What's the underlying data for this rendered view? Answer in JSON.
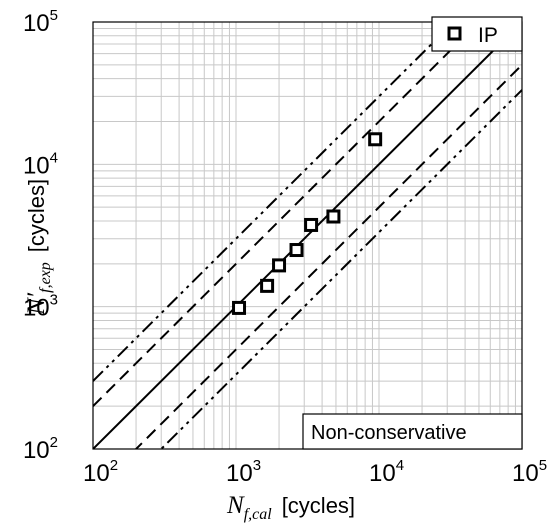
{
  "chart_data": {
    "type": "scatter",
    "xscale": "log",
    "yscale": "log",
    "xlim": [
      100,
      100000
    ],
    "ylim": [
      100,
      100000
    ],
    "grid": true,
    "xlabel": {
      "symbol": "N",
      "subscript": "f,cal",
      "unit": "[cycles]"
    },
    "ylabel": {
      "symbol": "N′",
      "subscript": "f,exp",
      "unit": "[cycles]"
    },
    "x_ticks": [
      {
        "value": 100,
        "base": "10",
        "exp": "2"
      },
      {
        "value": 1000,
        "base": "10",
        "exp": "3"
      },
      {
        "value": 10000,
        "base": "10",
        "exp": "4"
      },
      {
        "value": 100000,
        "base": "10",
        "exp": "5"
      }
    ],
    "y_ticks": [
      {
        "value": 100,
        "base": "10",
        "exp": "2"
      },
      {
        "value": 1000,
        "base": "10",
        "exp": "3"
      },
      {
        "value": 10000,
        "base": "10",
        "exp": "4"
      },
      {
        "value": 100000,
        "base": "10",
        "exp": "5"
      }
    ],
    "series": [
      {
        "name": "IP",
        "marker": "square",
        "points": [
          {
            "x": 1050,
            "y": 980
          },
          {
            "x": 1650,
            "y": 1400
          },
          {
            "x": 2000,
            "y": 1950
          },
          {
            "x": 2650,
            "y": 2500
          },
          {
            "x": 3350,
            "y": 3750
          },
          {
            "x": 4800,
            "y": 4300
          },
          {
            "x": 9400,
            "y": 15000
          }
        ]
      }
    ],
    "reference_lines": [
      {
        "factor": 1,
        "style": "solid"
      },
      {
        "factor": 2,
        "style": "dashed"
      },
      {
        "factor": 0.5,
        "style": "dashed"
      },
      {
        "factor": 3,
        "style": "dashdotdot"
      },
      {
        "factor": 0.3333,
        "style": "dashdotdot"
      }
    ],
    "legend": {
      "position": "top-right",
      "label": "IP"
    },
    "annotations": [
      {
        "text": "Non-conservative",
        "position": "bottom-right"
      }
    ]
  }
}
